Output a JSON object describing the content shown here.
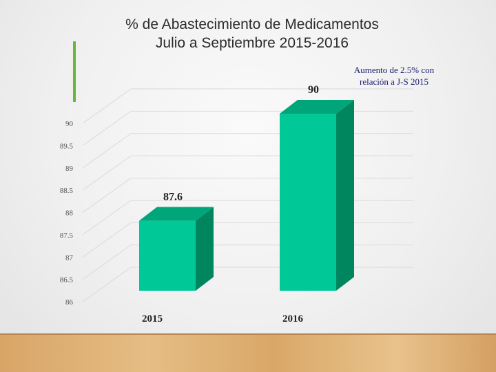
{
  "title_line1": "% de Abastecimiento de Medicamentos",
  "title_line2": "Julio a Septiembre 2015-2016",
  "note": "Aumento de 2.5% con relación a J-S 2015",
  "colors": {
    "bar_front": "#00c896",
    "bar_side": "#00865e",
    "bar_top": "#00a57a",
    "accent": "#6db33f",
    "note_text": "#1a1a6e"
  },
  "chart_data": {
    "type": "bar",
    "categories": [
      "2015",
      "2016"
    ],
    "values": [
      87.6,
      90
    ],
    "data_labels": [
      "87.6",
      "90"
    ],
    "ylim": [
      86,
      90
    ],
    "yticks": [
      "86",
      "86.5",
      "87",
      "87.5",
      "88",
      "88.5",
      "89",
      "89.5",
      "90"
    ],
    "grid": true,
    "three_d": true
  }
}
